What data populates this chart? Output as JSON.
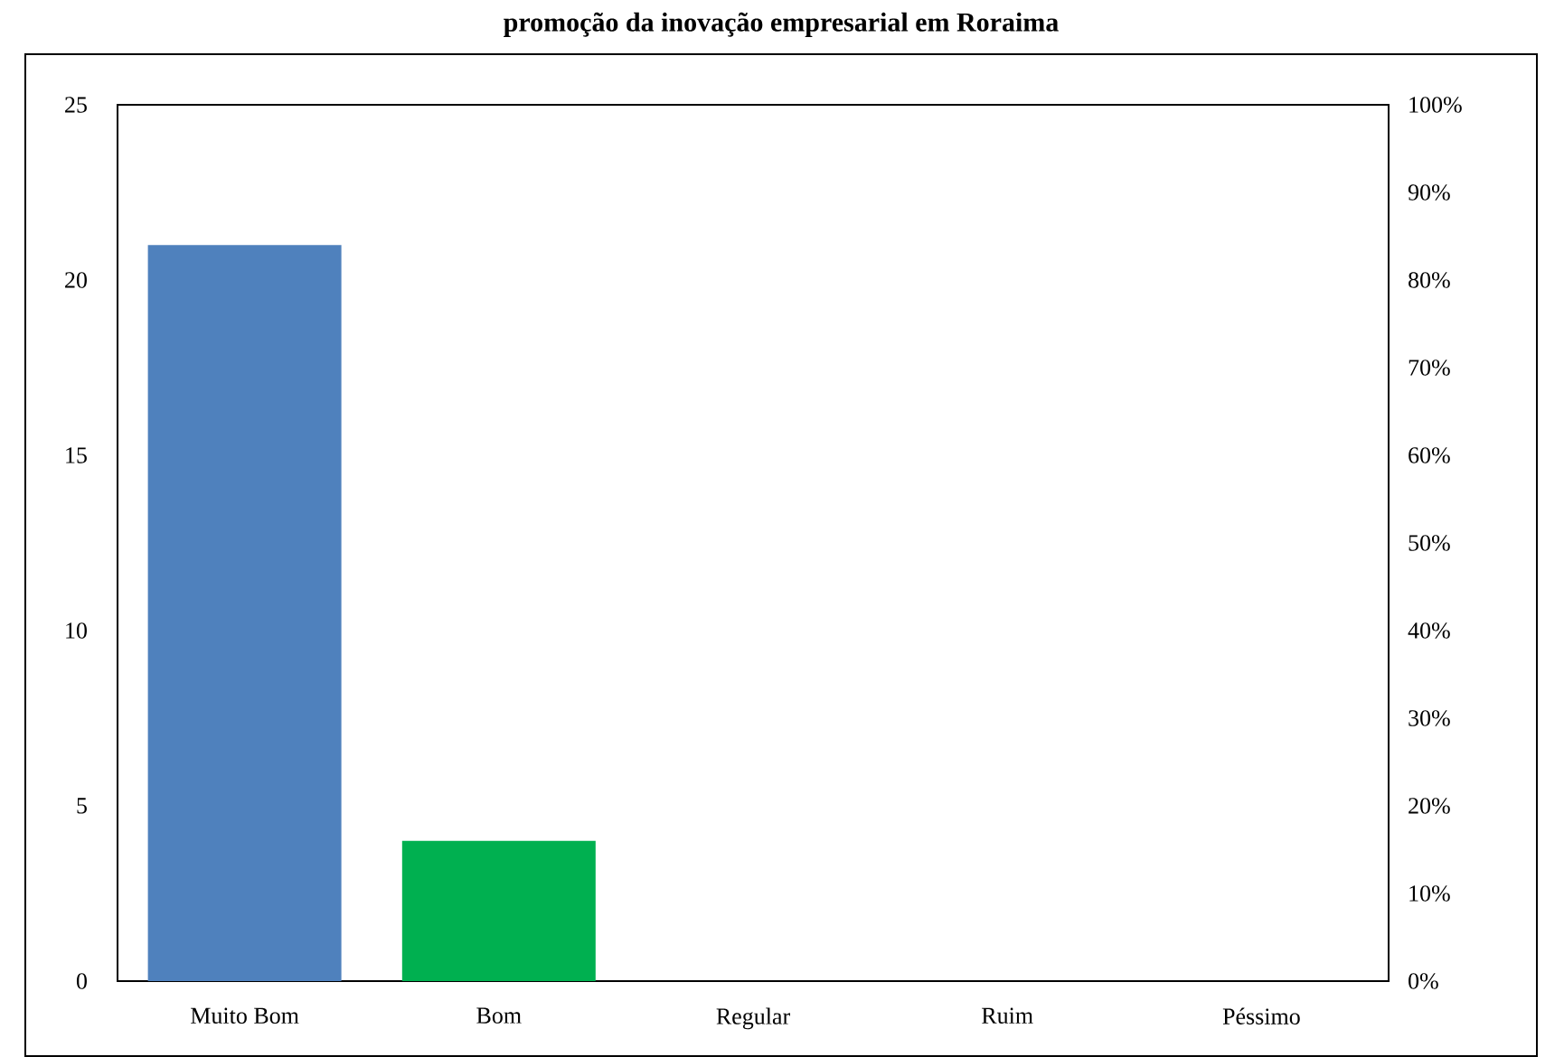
{
  "chart_data": {
    "type": "bar",
    "title": "promoção da inovação empresarial em Roraima",
    "categories": [
      "Muito Bom",
      "Bom",
      "Regular",
      "Ruim",
      "Péssimo"
    ],
    "values": [
      21,
      4,
      0,
      0,
      0
    ],
    "colors": [
      "#4f81bd",
      "#00b050",
      "#4f81bd",
      "#4f81bd",
      "#4f81bd"
    ],
    "ylim": [
      0,
      25
    ],
    "yticks": [
      0,
      5,
      10,
      15,
      20,
      25
    ],
    "y2lim": [
      0,
      100
    ],
    "y2ticks": [
      {
        "value": 0,
        "label": "0%"
      },
      {
        "value": 10,
        "label": "10%"
      },
      {
        "value": 20,
        "label": "20%"
      },
      {
        "value": 30,
        "label": "30%"
      },
      {
        "value": 40,
        "label": "40%"
      },
      {
        "value": 50,
        "label": "50%"
      },
      {
        "value": 60,
        "label": "60%"
      },
      {
        "value": 70,
        "label": "70%"
      },
      {
        "value": 80,
        "label": "80%"
      },
      {
        "value": 90,
        "label": "90%"
      },
      {
        "value": 100,
        "label": "100%"
      }
    ],
    "grid": false
  }
}
